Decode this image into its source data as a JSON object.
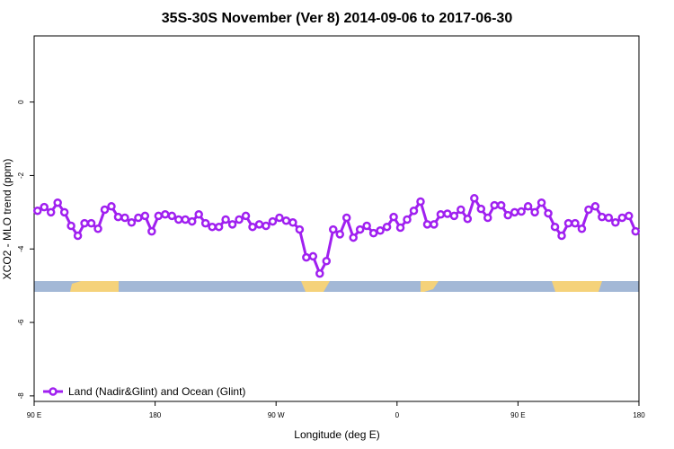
{
  "chart_data": {
    "type": "line",
    "title": "35S-30S November (Ver 8)   2014-09-06 to 2017-06-30",
    "x_label": "Longitude (deg E)",
    "y_label": "XCO2 - MLO trend (ppm)",
    "xlim": [
      90,
      540
    ],
    "ylim": [
      -8.15,
      1.8
    ],
    "xticks": [
      {
        "value": 90,
        "label": "90 E"
      },
      180,
      {
        "value": 270,
        "label": "90 W"
      },
      {
        "value": 360,
        "label": "0"
      },
      {
        "value": 450,
        "label": "90 E"
      },
      {
        "value": 540,
        "label": "180"
      }
    ],
    "yticks": [
      0,
      -2,
      -4,
      -6,
      -8
    ],
    "legend": "bottom-left",
    "series": [
      {
        "name": "Land (Nadir&Glint) and Ocean (Glint)",
        "color": "#a020f0",
        "x": [
          92.5,
          97.5,
          102.5,
          107.5,
          112.5,
          117.5,
          122.5,
          127.5,
          132.5,
          137.5,
          142.5,
          147.5,
          152.5,
          157.5,
          162.5,
          167.5,
          172.5,
          177.5,
          182.5,
          187.5,
          192.5,
          197.5,
          202.5,
          207.5,
          212.5,
          217.5,
          222.5,
          227.5,
          232.5,
          237.5,
          242.5,
          247.5,
          252.5,
          257.5,
          262.5,
          267.5,
          272.5,
          277.5,
          282.5,
          287.5,
          292.5,
          297.5,
          302.5,
          307.5,
          312.5,
          317.5,
          322.5,
          327.5,
          332.5,
          337.5,
          342.5,
          347.5,
          352.5,
          357.5,
          362.5,
          367.5,
          372.5,
          377.5,
          382.5,
          387.5,
          392.5,
          397.5,
          402.5,
          407.5,
          412.5,
          417.5,
          422.5,
          427.5,
          432.5,
          437.5,
          442.5,
          447.5,
          452.5,
          457.5,
          462.5,
          467.5,
          472.5,
          477.5,
          482.5,
          487.5,
          492.5,
          497.5,
          502.5,
          507.5,
          512.5,
          517.5,
          522.5,
          527.5,
          532.5,
          537.5
        ],
        "values": [
          -2.96,
          -2.86,
          -3.0,
          -2.74,
          -3.0,
          -3.37,
          -3.64,
          -3.3,
          -3.3,
          -3.45,
          -2.93,
          -2.84,
          -3.13,
          -3.15,
          -3.28,
          -3.15,
          -3.1,
          -3.52,
          -3.1,
          -3.06,
          -3.1,
          -3.2,
          -3.2,
          -3.25,
          -3.06,
          -3.3,
          -3.4,
          -3.4,
          -3.2,
          -3.33,
          -3.2,
          -3.1,
          -3.4,
          -3.33,
          -3.37,
          -3.25,
          -3.15,
          -3.23,
          -3.28,
          -3.47,
          -4.23,
          -4.2,
          -4.67,
          -4.33,
          -3.47,
          -3.6,
          -3.15,
          -3.69,
          -3.47,
          -3.37,
          -3.57,
          -3.5,
          -3.4,
          -3.13,
          -3.42,
          -3.2,
          -2.96,
          -2.71,
          -3.33,
          -3.33,
          -3.06,
          -3.04,
          -3.1,
          -2.93,
          -3.18,
          -2.62,
          -2.91,
          -3.15,
          -2.81,
          -2.81,
          -3.08,
          -3.0,
          -2.98,
          -2.84,
          -3.0,
          -2.74,
          -3.03,
          -3.4,
          -3.64,
          -3.3,
          -3.3,
          -3.45,
          -2.93,
          -2.84,
          -3.13,
          -3.15,
          -3.28,
          -3.15,
          -3.1,
          -3.52
        ]
      }
    ]
  }
}
